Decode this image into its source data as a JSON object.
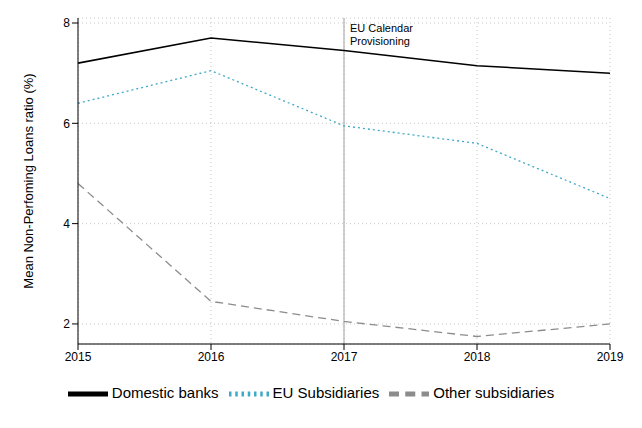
{
  "chart_data": {
    "type": "line",
    "y_label": "Mean Non-Perfoming Loans ratio (%)",
    "x": [
      2015,
      2016,
      2017,
      2018,
      2019
    ],
    "xlim": [
      2015,
      2019
    ],
    "xticks": [
      2015,
      2016,
      2017,
      2018,
      2019
    ],
    "ylim": [
      1.6,
      8.1
    ],
    "yticks": [
      2,
      4,
      6,
      8
    ],
    "grid": true,
    "legend": "bottom",
    "annotations": [
      {
        "x": 2017,
        "lines": [
          "EU Calendar",
          "Provisioning"
        ]
      }
    ],
    "series": [
      {
        "name": "Domestic banks",
        "color": "#000000",
        "line_style": "solid",
        "values": [
          7.2,
          7.7,
          7.45,
          7.15,
          7.0
        ]
      },
      {
        "name": "Other subsidiaries",
        "color": "#8c8c8c",
        "line_style": "dashed",
        "values": [
          4.8,
          2.45,
          2.05,
          1.75,
          2.0
        ]
      },
      {
        "name": "EU Subsidiaries",
        "color": "#3fa9c9",
        "line_style": "dotted",
        "values": [
          6.4,
          7.05,
          5.95,
          5.6,
          4.5
        ]
      }
    ]
  }
}
